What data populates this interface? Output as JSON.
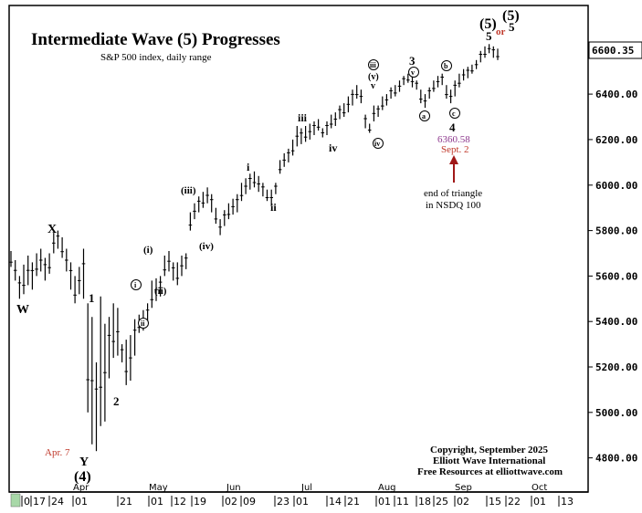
{
  "colors": {
    "background": "#ffffff",
    "frame": "#000000",
    "bars": "#000000",
    "price_box_fill": "#ffffff",
    "annotation_red": "#c0392b",
    "annotation_purple": "#8e3a8e",
    "arrow_red": "#a01818",
    "date_box_fill": "#a8d8a8"
  },
  "header": {
    "title": "Intermediate Wave (5) Progresses",
    "subtitle": "S&P 500 index, daily range"
  },
  "copyright": {
    "line1": "Copyright, September 2025",
    "line2": "Elliott Wave International",
    "line3": "Free Resources at elliottwave.com"
  },
  "price_readout": "6600.35",
  "chart_data": {
    "type": "bar",
    "title": "Intermediate Wave (5) Progresses",
    "subtitle": "S&P 500 index, daily range",
    "ylim": [
      4650,
      6790
    ],
    "y_ticks": [
      4800,
      5000,
      5200,
      5400,
      5600,
      5800,
      6000,
      6200,
      6400,
      6600
    ],
    "y_tick_labels": [
      "4800.00",
      "5000.00",
      "5200.00",
      "5400.00",
      "5600.00",
      "5800.00",
      "6000.00",
      "6200.00",
      "6400.00",
      "6600.00"
    ],
    "x_tick_labels": [
      "0",
      "17",
      "24",
      "01",
      "21",
      "01",
      "12",
      "19",
      "02",
      "09",
      "23",
      "01",
      "14",
      "21",
      "01",
      "11",
      "18",
      "25",
      "02",
      "15",
      "22",
      "01",
      "13"
    ],
    "month_labels": [
      "Apr",
      "May",
      "Jun",
      "Jul",
      "Aug",
      "Sep",
      "Oct"
    ],
    "grid": false,
    "bars": [
      [
        5640,
        5710
      ],
      [
        5580,
        5670
      ],
      [
        5500,
        5600
      ],
      [
        5520,
        5650
      ],
      [
        5560,
        5690
      ],
      [
        5540,
        5660
      ],
      [
        5600,
        5700
      ],
      [
        5620,
        5720
      ],
      [
        5580,
        5680
      ],
      [
        5610,
        5700
      ],
      [
        5700,
        5790
      ],
      [
        5720,
        5800
      ],
      [
        5680,
        5770
      ],
      [
        5620,
        5720
      ],
      [
        5540,
        5660
      ],
      [
        5480,
        5600
      ],
      [
        5520,
        5640
      ],
      [
        5500,
        5720
      ],
      [
        5000,
        5480
      ],
      [
        4860,
        5420
      ],
      [
        4830,
        5220
      ],
      [
        4940,
        5510
      ],
      [
        4960,
        5390
      ],
      [
        5150,
        5420
      ],
      [
        5240,
        5480
      ],
      [
        5250,
        5460
      ],
      [
        5220,
        5300
      ],
      [
        5120,
        5320
      ],
      [
        5140,
        5340
      ],
      [
        5250,
        5410
      ],
      [
        5350,
        5430
      ],
      [
        5360,
        5450
      ],
      [
        5380,
        5480
      ],
      [
        5460,
        5580
      ],
      [
        5490,
        5590
      ],
      [
        5510,
        5600
      ],
      [
        5600,
        5690
      ],
      [
        5620,
        5710
      ],
      [
        5580,
        5660
      ],
      [
        5560,
        5660
      ],
      [
        5600,
        5690
      ],
      [
        5630,
        5700
      ],
      [
        5800,
        5880
      ],
      [
        5850,
        5920
      ],
      [
        5880,
        5950
      ],
      [
        5900,
        5970
      ],
      [
        5920,
        5990
      ],
      [
        5880,
        5960
      ],
      [
        5830,
        5900
      ],
      [
        5780,
        5850
      ],
      [
        5820,
        5890
      ],
      [
        5850,
        5920
      ],
      [
        5870,
        5940
      ],
      [
        5880,
        5960
      ],
      [
        5930,
        6010
      ],
      [
        5960,
        6030
      ],
      [
        5980,
        6050
      ],
      [
        5990,
        6060
      ],
      [
        5970,
        6040
      ],
      [
        5950,
        6010
      ],
      [
        5930,
        5980
      ],
      [
        5910,
        5980
      ],
      [
        5960,
        6010
      ],
      [
        6050,
        6110
      ],
      [
        6080,
        6140
      ],
      [
        6100,
        6160
      ],
      [
        6130,
        6200
      ],
      [
        6170,
        6260
      ],
      [
        6180,
        6250
      ],
      [
        6190,
        6260
      ],
      [
        6200,
        6270
      ],
      [
        6220,
        6280
      ],
      [
        6240,
        6290
      ],
      [
        6210,
        6250
      ],
      [
        6220,
        6280
      ],
      [
        6250,
        6310
      ],
      [
        6260,
        6320
      ],
      [
        6290,
        6350
      ],
      [
        6300,
        6360
      ],
      [
        6320,
        6390
      ],
      [
        6350,
        6420
      ],
      [
        6380,
        6440
      ],
      [
        6360,
        6420
      ],
      [
        6250,
        6310
      ],
      [
        6230,
        6270
      ],
      [
        6280,
        6350
      ],
      [
        6300,
        6350
      ],
      [
        6330,
        6390
      ],
      [
        6350,
        6400
      ],
      [
        6380,
        6430
      ],
      [
        6390,
        6440
      ],
      [
        6410,
        6460
      ],
      [
        6440,
        6480
      ],
      [
        6450,
        6490
      ],
      [
        6430,
        6480
      ],
      [
        6420,
        6460
      ],
      [
        6360,
        6420
      ],
      [
        6340,
        6400
      ],
      [
        6380,
        6430
      ],
      [
        6410,
        6460
      ],
      [
        6430,
        6480
      ],
      [
        6440,
        6490
      ],
      [
        6380,
        6440
      ],
      [
        6360,
        6420
      ],
      [
        6390,
        6460
      ],
      [
        6430,
        6490
      ],
      [
        6460,
        6510
      ],
      [
        6470,
        6520
      ],
      [
        6490,
        6530
      ],
      [
        6510,
        6550
      ],
      [
        6540,
        6590
      ],
      [
        6560,
        6610
      ],
      [
        6580,
        6620
      ],
      [
        6560,
        6610
      ],
      [
        6550,
        6600
      ]
    ],
    "annotations": [
      {
        "label": "W",
        "value": 5460
      },
      {
        "label": "X",
        "value": 5830
      },
      {
        "label": "Y",
        "value": 4790
      },
      {
        "label": "(4)",
        "value": 4730
      },
      {
        "label": "Apr. 7",
        "value": 4840
      },
      {
        "label": "1",
        "value": 5510
      },
      {
        "label": "2",
        "value": 5070
      },
      {
        "label": "i",
        "value": 5560
      },
      {
        "label": "ii",
        "value": 5420
      },
      {
        "label": "(i)",
        "value": 5720
      },
      {
        "label": "(ii)",
        "value": 5600
      },
      {
        "label": "(iii)",
        "value": 5990
      },
      {
        "label": "(iv)",
        "value": 5750
      },
      {
        "label": "i",
        "value": 6080
      },
      {
        "label": "ii",
        "value": 5910
      },
      {
        "label": "iii",
        "value": 6310
      },
      {
        "label": "iv",
        "value": 6170
      },
      {
        "label": "iii",
        "value": 6540
      },
      {
        "label": "(v)",
        "value": 6480
      },
      {
        "label": "v",
        "value": 6440
      },
      {
        "label": "iv",
        "value": 6190
      },
      {
        "label": "3",
        "value": 6550
      },
      {
        "label": "v",
        "value": 6500
      },
      {
        "label": "a",
        "value": 6310
      },
      {
        "label": "b",
        "value": 6530
      },
      {
        "label": "c",
        "value": 6330
      },
      {
        "label": "4",
        "value": 6260
      },
      {
        "label": "6360.58",
        "value": 6360.58
      },
      {
        "label": "Sept. 2",
        "value": 6360.58
      },
      {
        "label": "5",
        "value": 6640
      },
      {
        "label": "(5)",
        "value": 6690
      },
      {
        "label": "or",
        "value": 6690
      },
      {
        "label": "(5)",
        "value": 6750
      },
      {
        "label": "5",
        "value": 6700
      }
    ],
    "note": {
      "line1": "end of triangle",
      "line2": "in NSDQ 100"
    }
  }
}
